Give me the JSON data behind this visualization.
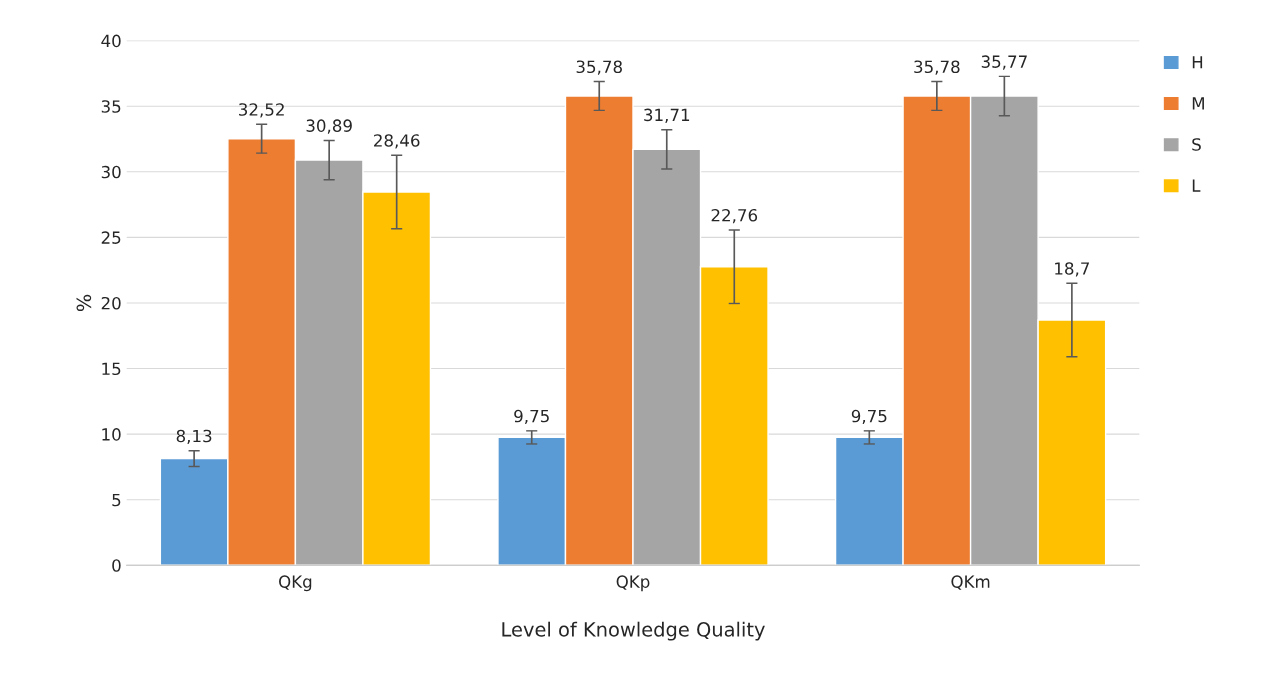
{
  "chart_data": {
    "type": "bar",
    "xlabel": "Level of Knowledge Quality",
    "ylabel": "%",
    "categories": [
      "QKg",
      "QKp",
      "QKm"
    ],
    "series": [
      {
        "name": "H",
        "color": "#5b9bd5",
        "values": [
          8.13,
          9.75,
          9.75
        ],
        "errors": [
          0.6,
          0.5,
          0.5
        ],
        "value_labels": [
          "8,13",
          "9,75",
          "9,75"
        ]
      },
      {
        "name": "M",
        "color": "#ed7d31",
        "values": [
          32.52,
          35.78,
          35.78
        ],
        "errors": [
          1.1,
          1.1,
          1.1
        ],
        "value_labels": [
          "32,52",
          "35,78",
          "35,78"
        ]
      },
      {
        "name": "S",
        "color": "#a5a5a5",
        "values": [
          30.89,
          31.71,
          35.77
        ],
        "errors": [
          1.5,
          1.5,
          1.5
        ],
        "value_labels": [
          "30,89",
          "31,71",
          "35,77"
        ]
      },
      {
        "name": "L",
        "color": "#ffc000",
        "values": [
          28.46,
          22.76,
          18.7
        ],
        "errors": [
          2.8,
          2.8,
          2.8
        ],
        "value_labels": [
          "28,46",
          "22,76",
          "18,7"
        ]
      }
    ],
    "ylim": [
      0,
      40
    ],
    "yticks": [
      0,
      5,
      10,
      15,
      20,
      25,
      30,
      35,
      40
    ],
    "grid": "y",
    "legend": "right"
  }
}
